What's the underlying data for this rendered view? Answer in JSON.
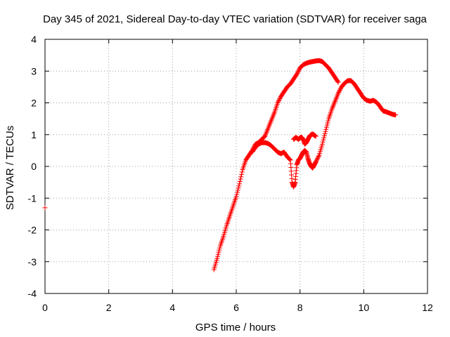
{
  "chart_data": {
    "type": "scatter",
    "title": "Day 345 of 2021, Sidereal Day-to-day VTEC variation (SDTVAR) for receiver saga",
    "xlabel": "GPS time / hours",
    "ylabel": "SDTVAR / TECUs",
    "xlim": [
      0,
      12
    ],
    "ylim": [
      -4,
      4
    ],
    "xticks": [
      "0",
      "2",
      "4",
      "6",
      "8",
      "10",
      "12"
    ],
    "yticks": [
      "-4",
      "-3",
      "-2",
      "-1",
      "0",
      "1",
      "2",
      "3",
      "4"
    ],
    "grid": true,
    "marker": "plus",
    "color": "#ff0000",
    "series": [
      {
        "x": [
          0.0,
          5.3,
          5.4,
          5.5,
          5.6,
          5.7,
          5.8,
          5.9,
          6.0,
          6.1,
          6.2,
          6.3,
          6.4,
          6.5,
          6.6,
          6.7,
          6.8,
          6.9,
          7.0,
          7.1,
          7.2,
          7.3,
          7.4,
          7.5,
          7.6,
          7.7,
          7.8,
          7.9,
          8.0,
          8.1,
          8.2,
          8.3,
          8.4,
          8.5,
          8.6,
          8.7,
          8.8,
          8.9,
          9.0,
          9.1,
          9.2
        ],
        "y": [
          -1.3,
          -3.25,
          -2.9,
          -2.5,
          -2.2,
          -1.85,
          -1.55,
          -1.25,
          -0.95,
          -0.55,
          -0.1,
          0.2,
          0.35,
          0.5,
          0.7,
          0.75,
          0.85,
          0.95,
          1.2,
          1.45,
          1.7,
          2.0,
          2.2,
          2.35,
          2.5,
          2.6,
          2.75,
          2.9,
          3.1,
          3.2,
          3.25,
          3.28,
          3.3,
          3.32,
          3.33,
          3.3,
          3.2,
          3.1,
          2.95,
          2.8,
          2.65
        ]
      },
      {
        "x": [
          6.5,
          6.6,
          6.7,
          6.8,
          6.9,
          7.0,
          7.1,
          7.2,
          7.3,
          7.4,
          7.5,
          7.6,
          7.7,
          7.75,
          7.8,
          7.85,
          7.9,
          7.95,
          8.0,
          8.05,
          8.1,
          8.15,
          8.2,
          8.25,
          8.3,
          8.35,
          8.4,
          8.45,
          8.5,
          8.6,
          8.7,
          8.8,
          8.9,
          9.0,
          9.1,
          9.2,
          9.3,
          9.4,
          9.5,
          9.6,
          9.7,
          9.8,
          9.9,
          10.0,
          10.1,
          10.2,
          10.3,
          10.4,
          10.5,
          10.6,
          10.7,
          10.8,
          10.9,
          11.0
        ],
        "y": [
          0.45,
          0.6,
          0.7,
          0.75,
          0.75,
          0.72,
          0.65,
          0.55,
          0.45,
          0.4,
          0.45,
          0.3,
          0.2,
          -0.5,
          -0.65,
          -0.5,
          0.05,
          0.2,
          0.25,
          0.35,
          0.45,
          0.5,
          0.45,
          0.25,
          0.1,
          0.0,
          -0.05,
          0.05,
          0.15,
          0.35,
          0.7,
          1.1,
          1.5,
          1.8,
          2.05,
          2.3,
          2.5,
          2.62,
          2.7,
          2.7,
          2.6,
          2.45,
          2.3,
          2.15,
          2.08,
          2.05,
          2.08,
          2.02,
          1.9,
          1.75,
          1.72,
          1.68,
          1.64,
          1.62
        ]
      },
      {
        "x": [
          7.8,
          7.85,
          7.9,
          7.95,
          8.0,
          8.05,
          8.1,
          8.15,
          8.2,
          8.25,
          8.3,
          8.35,
          8.4,
          8.45,
          8.5
        ],
        "y": [
          0.85,
          0.9,
          0.9,
          0.85,
          0.9,
          0.92,
          0.85,
          0.7,
          0.75,
          0.85,
          0.95,
          1.0,
          1.02,
          0.98,
          0.95
        ]
      }
    ]
  }
}
